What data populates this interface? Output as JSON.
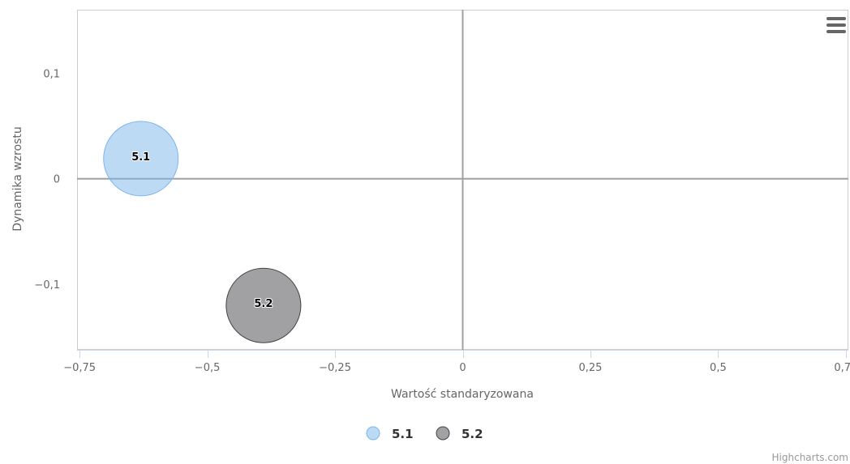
{
  "chart_data": {
    "type": "scatter",
    "subtype": "bubble",
    "xlabel": "Wartość standaryzowana",
    "ylabel": "Dynamika wzrostu",
    "xlim": [
      -0.755,
      0.755
    ],
    "ylim": [
      -0.162,
      0.16
    ],
    "x_ticks": [
      -0.75,
      -0.5,
      -0.25,
      0,
      0.25,
      0.5,
      0.75
    ],
    "x_tick_labels": [
      "−0,75",
      "−0,5",
      "−0,25",
      "0",
      "0,25",
      "0,5",
      "0,75"
    ],
    "y_ticks": [
      -0.1,
      0,
      0.1
    ],
    "y_tick_labels": [
      "−0,1",
      "0",
      "0,1"
    ],
    "reference_lines": {
      "x": 0,
      "y": 0
    },
    "grid": false,
    "legend": "bottom-center",
    "series": [
      {
        "name": "5.1",
        "color": "#7cb5ec",
        "points": [
          {
            "x": -0.63,
            "y": 0.019,
            "label": "5.1"
          }
        ]
      },
      {
        "name": "5.2",
        "color": "#434348",
        "points": [
          {
            "x": -0.39,
            "y": -0.12,
            "label": "5.2"
          }
        ]
      }
    ]
  },
  "chrome": {
    "menu_icon": "hamburger-menu-icon",
    "credits": "Highcharts.com"
  }
}
